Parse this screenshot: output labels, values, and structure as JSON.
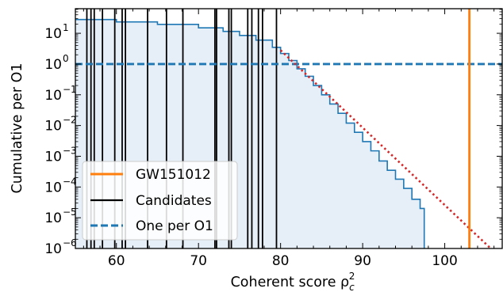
{
  "chart_data": {
    "type": "line",
    "title": "",
    "xlabel": "Coherent score ρ",
    "xlabel_sub": "c",
    "xlabel_sup": "2",
    "ylabel": "Cumulative per O1",
    "xlim": [
      55,
      107
    ],
    "ylim_log10": [
      -6,
      1.8
    ],
    "y_scale": "log",
    "grid": false,
    "legend_position": "lower-left",
    "x_ticks": [
      60,
      70,
      80,
      90,
      100
    ],
    "x_tick_labels": [
      "60",
      "70",
      "80",
      "90",
      "100"
    ],
    "y_ticks_log10": [
      1,
      0,
      -1,
      -2,
      -3,
      -4,
      -5,
      -6
    ],
    "y_tick_labels": [
      "10",
      "10",
      "10",
      "10",
      "10",
      "10",
      "10",
      "10"
    ],
    "y_tick_exponents": [
      "1",
      "0",
      "−1",
      "−2",
      "−3",
      "−4",
      "−5",
      "−6"
    ],
    "candidates_x": [
      56.4,
      56.9,
      57.3,
      58.3,
      59.8,
      60.7,
      61.1,
      63.8,
      66.1,
      68.1,
      72.0,
      72.2,
      73.7,
      74.0,
      76.0,
      76.5,
      77.3,
      77.8,
      79.5
    ],
    "gw151012_x": 103.0,
    "one_per_o1_y": 1.0,
    "background_cumulative": {
      "x": [
        55,
        60,
        65,
        70,
        73,
        75,
        77,
        79,
        80,
        81,
        82,
        83,
        84,
        85,
        86,
        87,
        88,
        89,
        90,
        91,
        92,
        93,
        94,
        95,
        96,
        97,
        97.5
      ],
      "y": [
        28,
        23.5,
        19.5,
        15,
        11.5,
        8.5,
        6,
        3.5,
        2.2,
        1.3,
        0.7,
        0.4,
        0.2,
        0.1,
        0.05,
        0.025,
        0.012,
        0.006,
        0.003,
        0.0015,
        0.0007,
        0.00035,
        0.00018,
        9e-05,
        4e-05,
        2e-05,
        1.5e-06
      ]
    },
    "fit_line": {
      "x": [
        80,
        106
      ],
      "y_log10": [
        0.45,
        -6.1
      ]
    },
    "colors": {
      "background": "#1f77b4",
      "fill": "#e6eff8",
      "candidates": "#000000",
      "gw": "#ff7f0e",
      "one_per": "#1f77b4",
      "fit": "#d62728"
    },
    "legend": [
      {
        "label": "GW151012",
        "style": "solid-orange"
      },
      {
        "label": "Candidates",
        "style": "solid-black"
      },
      {
        "label": "One per O1",
        "style": "dashed-blue"
      }
    ]
  }
}
